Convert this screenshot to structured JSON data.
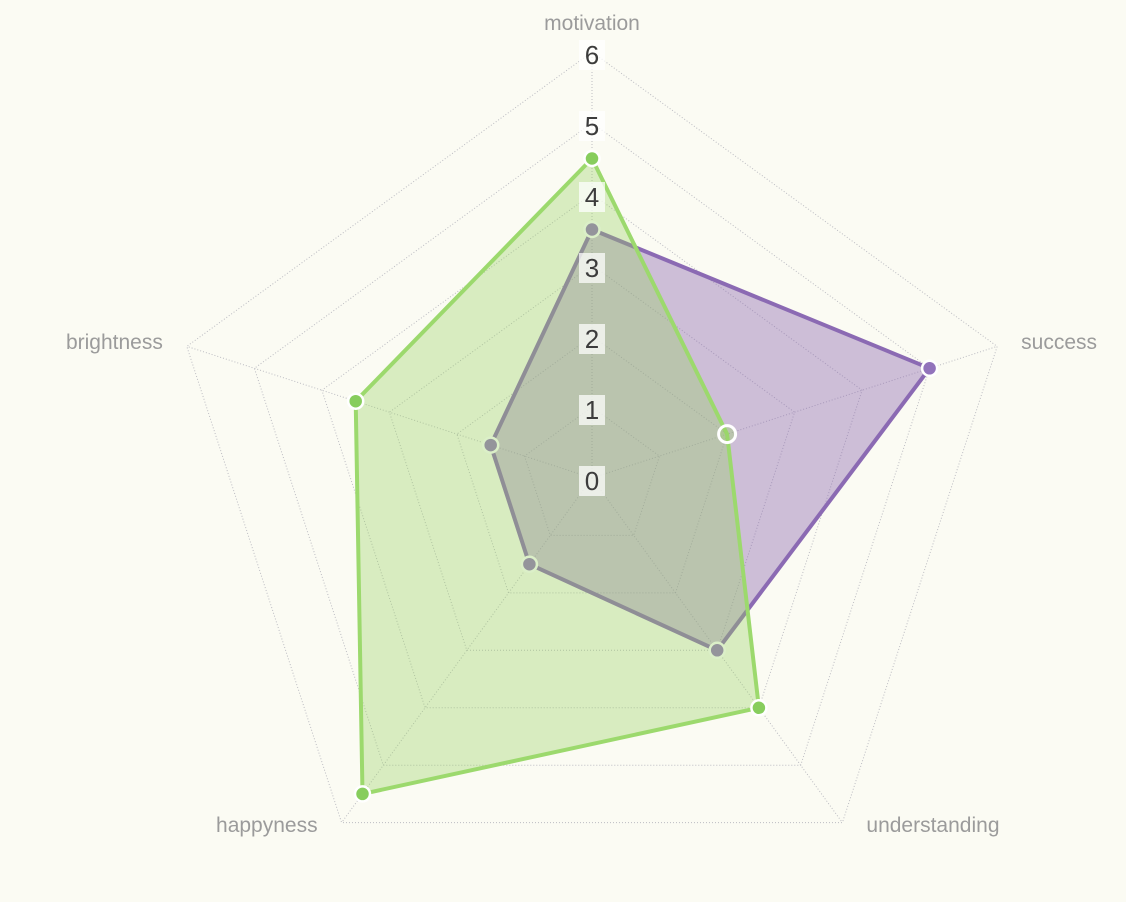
{
  "chart_data": {
    "type": "radar",
    "title": "",
    "axes": [
      "motivation",
      "success",
      "understanding",
      "happyness",
      "brightness"
    ],
    "scale": {
      "min": 0,
      "max": 6,
      "ticks": [
        0,
        1,
        2,
        3,
        4,
        5,
        6
      ]
    },
    "series": [
      {
        "name": "purple-series",
        "values": [
          3.5,
          5,
          3,
          1.5,
          1.5
        ],
        "line_color": "#8b6ab3",
        "fill_color": "rgba(140,106,177,0.42)",
        "point_color": "#9273bb",
        "hollow_points": []
      },
      {
        "name": "green-series",
        "values": [
          4.5,
          2,
          4,
          5.5,
          3.5
        ],
        "line_color": "#9cd96d",
        "fill_color": "rgba(151,210,98,0.35)",
        "point_color": "#87cd5d",
        "hollow_points": [
          "success"
        ]
      }
    ],
    "grid": {
      "style": "dotted",
      "color": "#bcbcc2",
      "rings": 6
    },
    "legend_position": "none",
    "tick_color": "#3c3c3c",
    "tick_backdrop_color": "rgba(255,255,255,0.72)",
    "axis_label_color": "#9b9b9b",
    "background_color": "#fbfbf3"
  }
}
